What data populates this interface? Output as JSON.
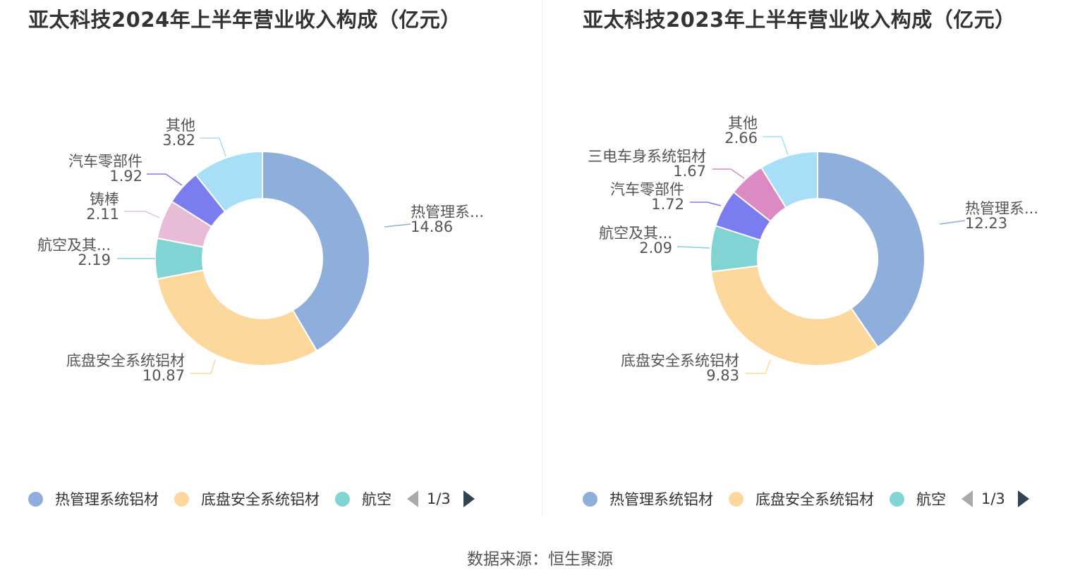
{
  "source": "数据来源：恒生聚源",
  "charts": [
    {
      "title": "亚太科技2024年上半年营业收入构成（亿元）",
      "legend": {
        "items": [
          {
            "label": "热管理系统铝材",
            "color": "#8eaedb"
          },
          {
            "label": "底盘安全系统铝材",
            "color": "#fdd89c"
          },
          {
            "label": "航空",
            "color": "#80d4d4"
          }
        ],
        "page": "1/3"
      }
    },
    {
      "title": "亚太科技2023年上半年营业收入构成（亿元）",
      "legend": {
        "items": [
          {
            "label": "热管理系统铝材",
            "color": "#8eaedb"
          },
          {
            "label": "底盘安全系统铝材",
            "color": "#fdd89c"
          },
          {
            "label": "航空",
            "color": "#80d4d4"
          }
        ],
        "page": "1/3"
      }
    }
  ],
  "chart_data": [
    {
      "type": "pie",
      "title": "亚太科技2024年上半年营业收入构成（亿元）",
      "slices": [
        {
          "label": "热管理系...",
          "value": 14.86,
          "color": "#8eaedb"
        },
        {
          "label": "底盘安全系统铝材",
          "value": 10.87,
          "color": "#fdd89c"
        },
        {
          "label": "航空及其...",
          "value": 2.19,
          "color": "#80d4d4"
        },
        {
          "label": "铸棒",
          "value": 2.11,
          "color": "#e8bcd8"
        },
        {
          "label": "汽车零部件",
          "value": 1.92,
          "color": "#7b7cf0"
        },
        {
          "label": "其他",
          "value": 3.82,
          "color": "#a8def8"
        }
      ]
    },
    {
      "type": "pie",
      "title": "亚太科技2023年上半年营业收入构成（亿元）",
      "slices": [
        {
          "label": "热管理系...",
          "value": 12.23,
          "color": "#8eaedb"
        },
        {
          "label": "底盘安全系统铝材",
          "value": 9.83,
          "color": "#fdd89c"
        },
        {
          "label": "航空及其...",
          "value": 2.09,
          "color": "#80d4d4"
        },
        {
          "label": "汽车零部件",
          "value": 1.72,
          "color": "#7b7cf0"
        },
        {
          "label": "三电车身系统铝材",
          "value": 1.67,
          "color": "#dc8ac4"
        },
        {
          "label": "其他",
          "value": 2.66,
          "color": "#a8def8"
        }
      ]
    }
  ]
}
